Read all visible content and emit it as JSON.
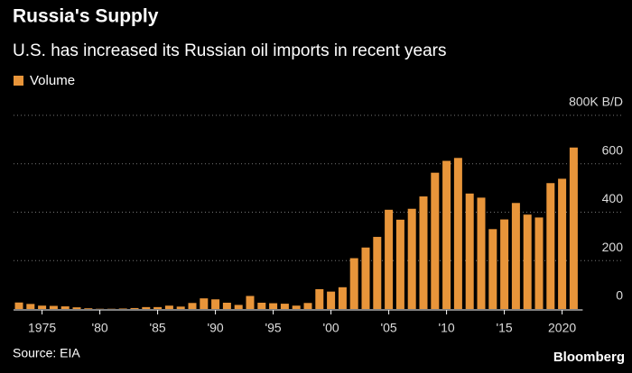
{
  "chart_data": {
    "type": "bar",
    "title": "Russia's Supply",
    "subtitle": "U.S. has increased its Russian oil imports in recent years",
    "source": "Source: EIA",
    "brand": "Bloomberg",
    "categories": [
      null,
      null,
      "1975",
      null,
      null,
      null,
      null,
      "'80",
      null,
      null,
      null,
      null,
      "'85",
      null,
      null,
      null,
      null,
      "'90",
      null,
      null,
      null,
      null,
      "'95",
      null,
      null,
      null,
      null,
      "'00",
      null,
      null,
      null,
      null,
      "'05",
      null,
      null,
      null,
      null,
      "'10",
      null,
      null,
      null,
      null,
      "'15",
      null,
      null,
      null,
      null,
      "2020",
      null
    ],
    "series": [
      {
        "name": "Volume",
        "color": "#e8953a",
        "values": [
          27,
          21,
          14,
          13,
          11,
          7,
          3,
          1,
          1,
          2,
          4,
          8,
          8,
          14,
          10,
          25,
          44,
          40,
          26,
          17,
          54,
          26,
          24,
          22,
          14,
          25,
          82,
          72,
          90,
          210,
          254,
          298,
          410,
          369,
          414,
          465,
          563,
          612,
          624,
          477,
          460,
          330,
          370,
          438,
          390,
          378,
          520,
          538,
          667
        ]
      }
    ],
    "ylim": [
      0,
      800
    ],
    "yticks": [
      0,
      200,
      400,
      600,
      {
        "value": 800,
        "label": "800K B/D"
      }
    ],
    "grid": true
  }
}
